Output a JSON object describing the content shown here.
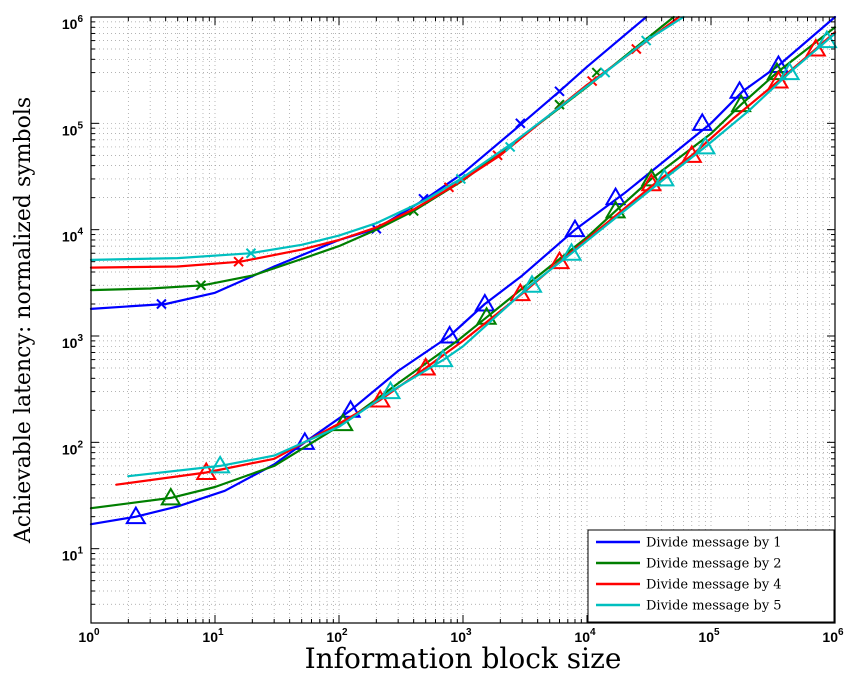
{
  "chart_data": {
    "type": "line",
    "xlabel": "Information block size",
    "ylabel": "Achievable latency:  normalized symbols",
    "xscale": "log",
    "yscale": "log",
    "xlim": [
      1,
      1000000
    ],
    "ylim": [
      2,
      1000000
    ],
    "grid": true,
    "legend_position": "bottom-right",
    "x_tick_labels": [
      {
        "base": "10",
        "exp": "0",
        "value": 1
      },
      {
        "base": "10",
        "exp": "1",
        "value": 10
      },
      {
        "base": "10",
        "exp": "2",
        "value": 100
      },
      {
        "base": "10",
        "exp": "3",
        "value": 1000
      },
      {
        "base": "10",
        "exp": "4",
        "value": 10000
      },
      {
        "base": "10",
        "exp": "5",
        "value": 100000
      },
      {
        "base": "10",
        "exp": "6",
        "value": 1000000
      }
    ],
    "y_tick_labels": [
      {
        "base": "10",
        "exp": "1",
        "value": 10
      },
      {
        "base": "10",
        "exp": "2",
        "value": 100
      },
      {
        "base": "10",
        "exp": "3",
        "value": 1000
      },
      {
        "base": "10",
        "exp": "4",
        "value": 10000
      },
      {
        "base": "10",
        "exp": "5",
        "value": 100000
      },
      {
        "base": "10",
        "exp": "6",
        "value": 1000000
      }
    ],
    "series": [
      {
        "name": "Divide message by 1",
        "color": "#0000ff",
        "marker": "x",
        "legend": true,
        "x": [
          1,
          2,
          4,
          10,
          30,
          100,
          200,
          500,
          1000,
          3000,
          6000,
          10000,
          30000
        ],
        "y": [
          1800,
          1900,
          2000,
          2550,
          4500,
          8000,
          10200,
          19500,
          34000,
          100000,
          200000,
          340000,
          1000000
        ],
        "marker_x": [
          3.7,
          200,
          480,
          2900,
          6000
        ],
        "marker_y": [
          2000,
          10200,
          19500,
          100000,
          200000
        ]
      },
      {
        "name": "Divide message by 2",
        "color": "#007f00",
        "marker": "x",
        "legend": true,
        "x": [
          1,
          3,
          8,
          20,
          50,
          100,
          200,
          400,
          1000,
          3000,
          10000,
          30000,
          50000
        ],
        "y": [
          2700,
          2800,
          3000,
          3700,
          5300,
          7000,
          10000,
          15000,
          29000,
          75000,
          220000,
          620000,
          1000000
        ],
        "marker_x": [
          7.7,
          400,
          6000,
          12000
        ],
        "marker_y": [
          3000,
          15000,
          150000,
          300000
        ]
      },
      {
        "name": "Divide message by 4",
        "color": "#ff0000",
        "marker": "x",
        "legend": true,
        "x": [
          1,
          5,
          16,
          50,
          100,
          200,
          400,
          800,
          2000,
          5000,
          10000,
          25000,
          55000
        ],
        "y": [
          4400,
          4500,
          5000,
          6500,
          8000,
          10500,
          15500,
          25000,
          50000,
          120000,
          230000,
          500000,
          1000000
        ],
        "marker_x": [
          15.5,
          770,
          1900,
          11000,
          25000
        ],
        "marker_y": [
          5000,
          25000,
          50000,
          250000,
          500000
        ]
      },
      {
        "name": "Divide message by 5",
        "color": "#00bfbf",
        "marker": "x",
        "legend": true,
        "x": [
          1,
          5,
          19,
          50,
          100,
          200,
          500,
          1000,
          2500,
          5000,
          15000,
          30000,
          60000
        ],
        "y": [
          5200,
          5400,
          6000,
          7200,
          8800,
          11500,
          19000,
          31000,
          65000,
          120000,
          320000,
          600000,
          1000000
        ],
        "marker_x": [
          19.5,
          960,
          2400,
          14000,
          30000
        ],
        "marker_y": [
          6000,
          30000,
          60000,
          300000,
          600000
        ]
      },
      {
        "name": "Divide message by 1",
        "color": "#0000ff",
        "marker": "triangle",
        "legend": false,
        "x": [
          1,
          2.3,
          5,
          12,
          30,
          53,
          124,
          300,
          780,
          1500,
          3000,
          8000,
          20000,
          100000,
          180000,
          350000,
          1000000
        ],
        "y": [
          17,
          20,
          25,
          35,
          62,
          100,
          200,
          470,
          1000,
          2000,
          3700,
          10000,
          22000,
          100000,
          200000,
          350000,
          1000000
        ],
        "marker_x": [
          2.3,
          53,
          124,
          780,
          1500,
          8000,
          17000,
          85000,
          170000,
          350000
        ],
        "marker_y": [
          20,
          100,
          200,
          1000,
          2000,
          10000,
          20000,
          100000,
          200000,
          350000
        ]
      },
      {
        "name": "Divide message by 2",
        "color": "#007f00",
        "marker": "triangle",
        "legend": false,
        "x": [
          1,
          4.4,
          10,
          30,
          108,
          300,
          900,
          1550,
          3000,
          10000,
          17000,
          33000,
          100000,
          175000,
          340000,
          1000000
        ],
        "y": [
          24,
          30,
          38,
          60,
          150,
          360,
          900,
          1500,
          2800,
          8500,
          15000,
          30000,
          80000,
          150000,
          300000,
          800000
        ],
        "marker_x": [
          4.4,
          108,
          1550,
          17000,
          33000,
          175000,
          340000
        ],
        "marker_y": [
          30,
          150,
          1500,
          15000,
          30000,
          150000,
          300000
        ]
      },
      {
        "name": "Divide message by 4",
        "color": "#ff0000",
        "marker": "triangle",
        "legend": false,
        "x": [
          1.6,
          8.5,
          30,
          100,
          215,
          500,
          1000,
          3000,
          6000,
          15000,
          35000,
          70000,
          150000,
          350000,
          700000,
          1000000
        ],
        "y": [
          40,
          52,
          70,
          150,
          250,
          500,
          900,
          2500,
          5000,
          12000,
          27000,
          50000,
          110000,
          250000,
          500000,
          720000
        ],
        "marker_x": [
          8.5,
          215,
          500,
          2900,
          6000,
          33000,
          70000,
          350000,
          700000
        ],
        "marker_y": [
          52,
          250,
          500,
          2500,
          5000,
          27000,
          50000,
          250000,
          500000
        ]
      },
      {
        "name": "Divide message by 5",
        "color": "#00bfbf",
        "marker": "triangle",
        "legend": false,
        "x": [
          2,
          11,
          30,
          100,
          260,
          700,
          1000,
          3500,
          7500,
          20000,
          42000,
          90000,
          200000,
          430000,
          860000,
          1000000
        ],
        "y": [
          48,
          60,
          75,
          140,
          300,
          600,
          800,
          3000,
          6000,
          15000,
          30000,
          60000,
          130000,
          300000,
          600000,
          700000
        ],
        "marker_x": [
          11,
          260,
          690,
          3600,
          7500,
          42000,
          90000,
          430000,
          860000
        ],
        "marker_y": [
          60,
          300,
          600,
          3000,
          6000,
          30000,
          60000,
          300000,
          600000
        ]
      }
    ]
  }
}
